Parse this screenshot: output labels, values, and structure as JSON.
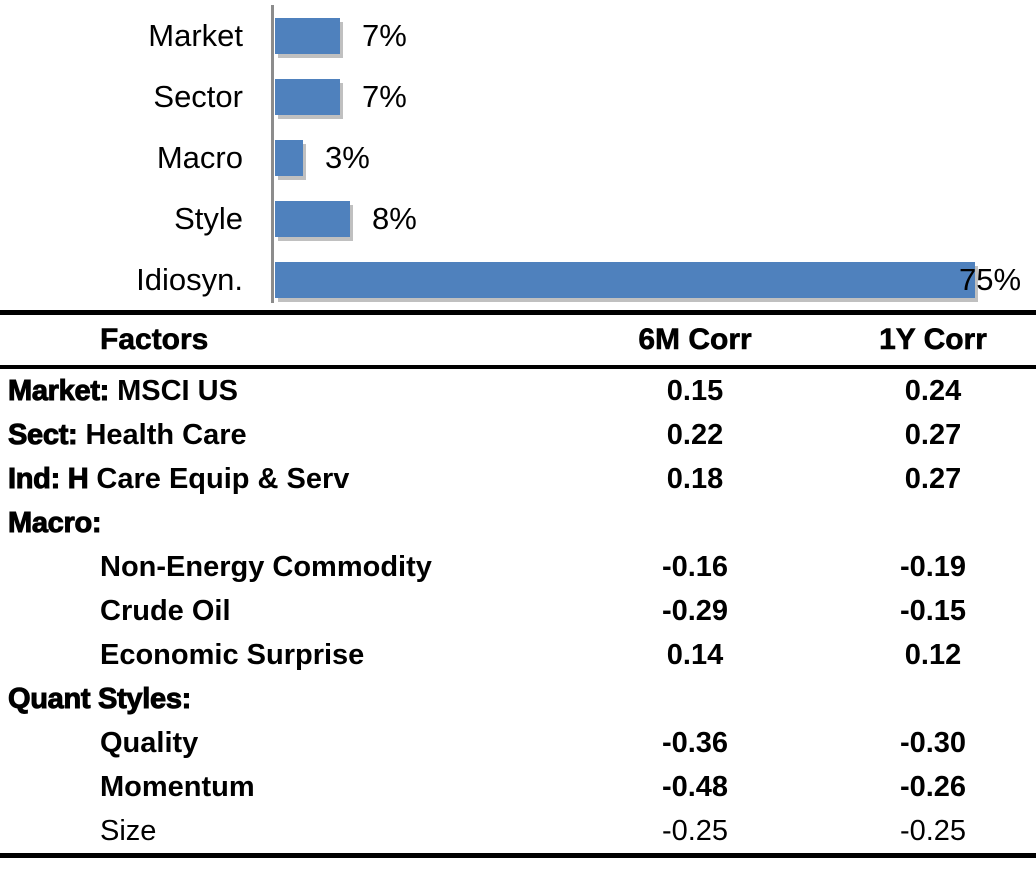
{
  "chart_data": [
    {
      "type": "bar",
      "orientation": "horizontal",
      "title": "",
      "xlabel": "",
      "ylabel": "",
      "categories": [
        "Market",
        "Sector",
        "Macro",
        "Style",
        "Idiosyn."
      ],
      "values": [
        7,
        7,
        3,
        8,
        75
      ],
      "value_labels": [
        "7%",
        "7%",
        "3%",
        "8%",
        "75%"
      ],
      "xlim": [
        0,
        80
      ],
      "grid": false,
      "legend": false,
      "bar_color": "#4F81BD",
      "axis_color": "#8C8C8C"
    },
    {
      "type": "table",
      "headers": [
        "Factors",
        "6M Corr",
        "1Y Corr"
      ],
      "rows": [
        {
          "style": "category",
          "prefix": "Market:",
          "label": " MSCI US",
          "c6m": "0.15",
          "c1y": "0.24"
        },
        {
          "style": "category",
          "prefix": "Sect:",
          "label": " Health Care",
          "c6m": "0.22",
          "c1y": "0.27"
        },
        {
          "style": "category",
          "prefix": "Ind: H",
          "label": " Care Equip & Serv",
          "c6m": "0.18",
          "c1y": "0.27"
        },
        {
          "style": "category",
          "prefix": "Macro:",
          "label": "",
          "c6m": "",
          "c1y": ""
        },
        {
          "style": "sub",
          "prefix": "",
          "label": "Non-Energy Commodity",
          "c6m": "-0.16",
          "c1y": "-0.19"
        },
        {
          "style": "sub",
          "prefix": "",
          "label": "Crude Oil",
          "c6m": "-0.29",
          "c1y": "-0.15"
        },
        {
          "style": "sub",
          "prefix": "",
          "label": "Economic Surprise",
          "c6m": "0.14",
          "c1y": "0.12"
        },
        {
          "style": "category",
          "prefix": "Quant Styles:",
          "label": "",
          "c6m": "",
          "c1y": ""
        },
        {
          "style": "sub",
          "prefix": "",
          "label": "Quality",
          "c6m": "-0.36",
          "c1y": "-0.30"
        },
        {
          "style": "sub",
          "prefix": "",
          "label": "Momentum",
          "c6m": "-0.48",
          "c1y": "-0.26"
        },
        {
          "style": "sub-light",
          "prefix": "",
          "label": "Size",
          "c6m": "-0.25",
          "c1y": "-0.25"
        }
      ]
    }
  ]
}
